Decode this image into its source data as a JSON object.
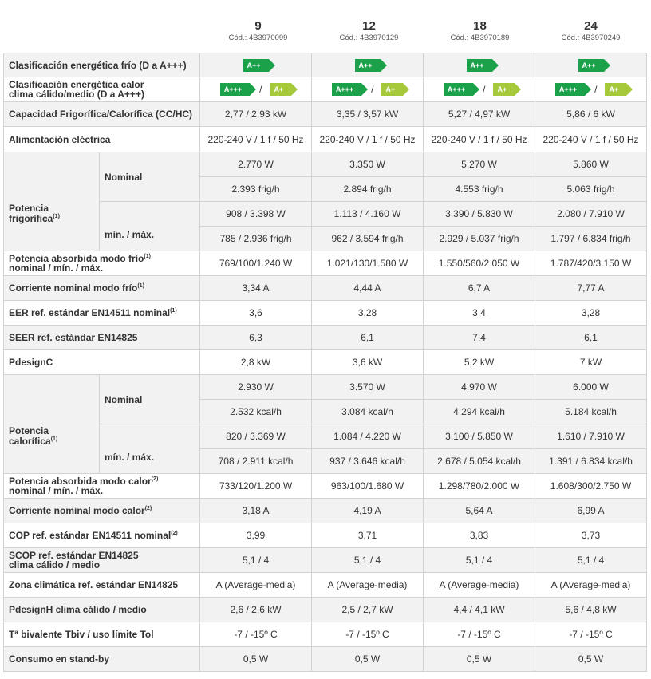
{
  "columns": [
    {
      "model": "9",
      "code": "Cód.: 4B3970099"
    },
    {
      "model": "12",
      "code": "Cód.: 4B3970129"
    },
    {
      "model": "18",
      "code": "Cód.: 4B3970189"
    },
    {
      "model": "24",
      "code": "Cód.: 4B3970249"
    }
  ],
  "energy": {
    "cold_label": "Clasificación energética frío (D a A+++)",
    "heat_label_line1": "Clasificación energética calor",
    "heat_label_line2": "clima cálido/medio (D a A+++)",
    "cold_badge": "A++",
    "heat_badge_a": "A+++",
    "heat_badge_b": "A+",
    "separator": "/",
    "colors": {
      "dark_green": "#1aa14a",
      "light_green": "#a5c93a"
    }
  },
  "rows": {
    "capacidad": {
      "label": "Capacidad Frigorífica/Calorífica (CC/HC)",
      "values": [
        "2,77 / 2,93 kW",
        "3,35 / 3,57 kW",
        "5,27 / 4,97 kW",
        "5,86 / 6 kW"
      ]
    },
    "alimentacion": {
      "label": "Alimentación eléctrica",
      "values": [
        "220-240 V / 1 f / 50 Hz",
        "220-240 V / 1 f / 50 Hz",
        "220-240 V / 1 f / 50 Hz",
        "220-240 V / 1 f / 50 Hz"
      ]
    },
    "pot_frig": {
      "group_label": "Potencia frigorífica",
      "sup": "(1)",
      "nominal_label": "Nominal",
      "minmax_label": "mín. / máx.",
      "nominal_w": [
        "2.770 W",
        "3.350 W",
        "5.270 W",
        "5.860 W"
      ],
      "nominal_f": [
        "2.393 frig/h",
        "2.894 frig/h",
        "4.553 frig/h",
        "5.063 frig/h"
      ],
      "minmax_w": [
        "908 / 3.398 W",
        "1.113 / 4.160 W",
        "3.390 / 5.830 W",
        "2.080 / 7.910 W"
      ],
      "minmax_f": [
        "785 / 2.936 frig/h",
        "962 / 3.594 frig/h",
        "2.929 / 5.037 frig/h",
        "1.797 / 6.834 frig/h"
      ]
    },
    "abs_frio": {
      "label1": "Potencia absorbida modo frío",
      "sup": "(1)",
      "label2": "nominal / mín. / máx.",
      "values": [
        "769/100/1.240 W",
        "1.021/130/1.580 W",
        "1.550/560/2.050 W",
        "1.787/420/3.150 W"
      ]
    },
    "corr_frio": {
      "label": "Corriente nominal modo frío",
      "sup": "(1)",
      "values": [
        "3,34 A",
        "4,44 A",
        "6,7 A",
        "7,77 A"
      ]
    },
    "eer": {
      "label": "EER ref. estándar EN14511 nominal",
      "sup": "(1)",
      "values": [
        "3,6",
        "3,28",
        "3,4",
        "3,28"
      ]
    },
    "seer": {
      "label": "SEER ref. estándar EN14825",
      "values": [
        "6,3",
        "6,1",
        "7,4",
        "6,1"
      ]
    },
    "pdesignc": {
      "label": "PdesignC",
      "values": [
        "2,8 kW",
        "3,6 kW",
        "5,2 kW",
        "7 kW"
      ]
    },
    "pot_cal": {
      "group_label": "Potencia calorífica",
      "sup": "(1)",
      "nominal_label": "Nominal",
      "minmax_label": "mín. / máx.",
      "nominal_w": [
        "2.930 W",
        "3.570 W",
        "4.970 W",
        "6.000 W"
      ],
      "nominal_k": [
        "2.532 kcal/h",
        "3.084 kcal/h",
        "4.294 kcal/h",
        "5.184 kcal/h"
      ],
      "minmax_w": [
        "820 / 3.369 W",
        "1.084 / 4.220 W",
        "3.100 / 5.850 W",
        "1.610 / 7.910 W"
      ],
      "minmax_k": [
        "708 / 2.911 kcal/h",
        "937 / 3.646 kcal/h",
        "2.678 / 5.054 kcal/h",
        "1.391 / 6.834 kcal/h"
      ]
    },
    "abs_calor": {
      "label1": "Potencia absorbida modo calor",
      "sup": "(2)",
      "label2": "nominal / mín. / máx.",
      "values": [
        "733/120/1.200 W",
        "963/100/1.680 W",
        "1.298/780/2.000 W",
        "1.608/300/2.750 W"
      ]
    },
    "corr_calor": {
      "label": "Corriente nominal modo calor",
      "sup": "(2)",
      "values": [
        "3,18 A",
        "4,19 A",
        "5,64 A",
        "6,99 A"
      ]
    },
    "cop": {
      "label": "COP ref. estándar EN14511 nominal",
      "sup": "(2)",
      "values": [
        "3,99",
        "3,71",
        "3,83",
        "3,73"
      ]
    },
    "scop": {
      "label1": "SCOP ref. estándar EN14825",
      "label2": "clima cálido / medio",
      "values": [
        "5,1 / 4",
        "5,1 / 4",
        "5,1 / 4",
        "5,1 / 4"
      ]
    },
    "zona": {
      "label": "Zona climática ref. estándar EN14825",
      "values": [
        "A (Average-media)",
        "A (Average-media)",
        "A (Average-media)",
        "A (Average-media)"
      ]
    },
    "pdesignh": {
      "label": "PdesignH clima cálido / medio",
      "values": [
        "2,6 / 2,6 kW",
        "2,5 / 2,7 kW",
        "4,4 / 4,1 kW",
        "5,6 / 4,8 kW"
      ]
    },
    "tbiv": {
      "label": "Tª bivalente Tbiv / uso límite Tol",
      "values": [
        "-7 / -15º C",
        "-7 / -15º C",
        "-7 / -15º C",
        "-7 / -15º C"
      ]
    },
    "standby": {
      "label": "Consumo en stand-by",
      "values": [
        "0,5 W",
        "0,5 W",
        "0,5 W",
        "0,5 W"
      ]
    }
  }
}
